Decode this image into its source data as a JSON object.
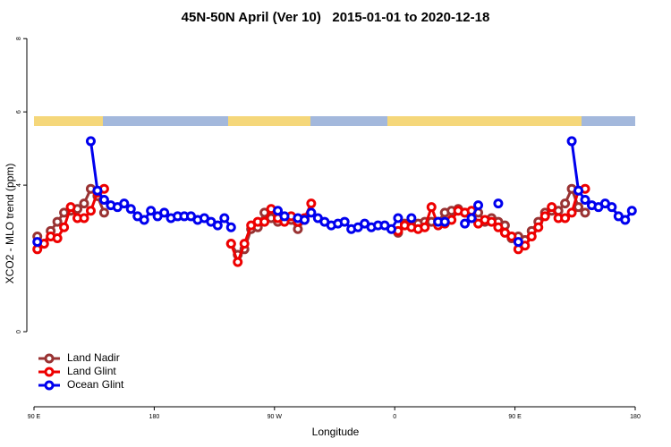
{
  "chart_data": {
    "type": "line",
    "title": "45N-50N April (Ver 10)   2015-01-01 to 2020-12-18",
    "x_label": "Longitude",
    "y_label": "XCO2 - MLO trend (ppm)",
    "xlim": [
      90,
      540
    ],
    "ylim": [
      -2.05,
      8.2
    ],
    "xticks": [
      {
        "value": 90,
        "label": "90 E"
      },
      180,
      {
        "value": 270,
        "label": "90 W"
      },
      {
        "value": 360,
        "label": "0"
      },
      {
        "value": 450,
        "label": "90 E"
      },
      {
        "value": 540,
        "label": "180"
      }
    ],
    "yticks": [
      0,
      4,
      6,
      8
    ],
    "legend": "bottomleft",
    "x": [
      92.5,
      97.5,
      102.5,
      107.5,
      112.5,
      117.5,
      122.5,
      127.5,
      132.5,
      137.5,
      142.5,
      147.5,
      152.5,
      157.5,
      162.5,
      167.5,
      172.5,
      177.5,
      182.5,
      187.5,
      192.5,
      197.5,
      202.5,
      207.5,
      212.5,
      217.5,
      222.5,
      227.5,
      232.5,
      237.5,
      242.5,
      247.5,
      252.5,
      257.5,
      262.5,
      267.5,
      272.5,
      277.5,
      282.5,
      287.5,
      292.5,
      297.5,
      302.5,
      307.5,
      312.5,
      317.5,
      322.5,
      327.5,
      332.5,
      337.5,
      342.5,
      347.5,
      352.5,
      357.5,
      362.5,
      367.5,
      372.5,
      377.5,
      382.5,
      387.5,
      392.5,
      397.5,
      402.5,
      407.5,
      412.5,
      417.5,
      422.5,
      427.5,
      432.5,
      437.5,
      442.5,
      447.5,
      452.5,
      457.5,
      462.5,
      467.5,
      472.5,
      477.5,
      482.5,
      487.5,
      492.5,
      497.5,
      502.5,
      507.5,
      512.5,
      517.5,
      522.5,
      527.5,
      532.5,
      537.5
    ],
    "series": [
      {
        "name": "Land Nadir",
        "color": "#993333",
        "values": [
          2.6,
          2.4,
          2.75,
          3.0,
          3.25,
          3.3,
          3.35,
          3.5,
          3.9,
          3.7,
          3.25,
          null,
          null,
          null,
          null,
          null,
          null,
          null,
          null,
          null,
          null,
          null,
          null,
          null,
          null,
          null,
          null,
          null,
          null,
          2.4,
          2.1,
          2.25,
          2.8,
          2.85,
          3.25,
          3.1,
          3.0,
          3.1,
          3.05,
          2.8,
          3.05,
          null,
          null,
          null,
          null,
          null,
          null,
          null,
          null,
          null,
          null,
          null,
          null,
          null,
          2.7,
          2.95,
          2.9,
          2.95,
          3.0,
          3.0,
          3.0,
          3.25,
          3.3,
          3.35,
          3.25,
          3.25,
          3.25,
          3.0,
          3.1,
          3.0,
          2.9,
          2.55,
          2.6,
          2.5,
          2.75,
          3.0,
          3.25,
          3.3,
          3.3,
          3.5,
          3.9,
          3.4,
          3.25,
          null,
          null,
          null,
          null,
          null,
          null,
          null
        ]
      },
      {
        "name": "Land Glint",
        "color": "#ee0000",
        "values": [
          2.25,
          2.4,
          2.6,
          2.55,
          2.85,
          3.4,
          3.1,
          3.1,
          3.3,
          3.8,
          3.9,
          null,
          null,
          null,
          null,
          null,
          null,
          null,
          null,
          null,
          null,
          null,
          null,
          null,
          null,
          null,
          null,
          null,
          null,
          2.4,
          1.9,
          2.4,
          2.9,
          3.0,
          3.0,
          3.35,
          3.1,
          3.0,
          3.15,
          3.0,
          3.1,
          3.5,
          null,
          null,
          null,
          null,
          null,
          null,
          null,
          null,
          null,
          null,
          null,
          null,
          2.75,
          2.9,
          2.85,
          2.8,
          2.85,
          3.4,
          2.9,
          2.95,
          3.05,
          3.3,
          3.25,
          3.3,
          2.95,
          3.05,
          3.0,
          2.85,
          2.7,
          2.6,
          2.25,
          2.35,
          2.6,
          2.85,
          3.15,
          3.4,
          3.1,
          3.1,
          3.25,
          3.85,
          3.9,
          null,
          null,
          null,
          null,
          null,
          null,
          null
        ]
      },
      {
        "name": "Ocean Glint",
        "color": "#0000ee",
        "values": [
          2.45,
          null,
          null,
          null,
          null,
          null,
          null,
          null,
          5.2,
          3.85,
          3.6,
          3.45,
          3.4,
          3.5,
          3.35,
          3.15,
          3.05,
          3.3,
          3.15,
          3.25,
          3.1,
          3.15,
          3.15,
          3.15,
          3.05,
          3.1,
          3.0,
          2.9,
          3.1,
          2.85,
          null,
          null,
          null,
          null,
          null,
          null,
          3.3,
          3.15,
          null,
          3.1,
          3.05,
          3.25,
          3.1,
          3.0,
          2.9,
          2.95,
          3.0,
          2.8,
          2.85,
          2.95,
          2.85,
          2.9,
          2.9,
          2.8,
          3.1,
          null,
          3.1,
          null,
          null,
          null,
          3.0,
          3.0,
          null,
          null,
          2.95,
          3.1,
          3.45,
          null,
          null,
          3.5,
          null,
          null,
          2.45,
          null,
          null,
          null,
          null,
          null,
          null,
          null,
          5.2,
          3.85,
          3.6,
          3.45,
          3.4,
          3.5,
          3.4,
          3.15,
          3.05,
          3.3
        ]
      }
    ]
  }
}
